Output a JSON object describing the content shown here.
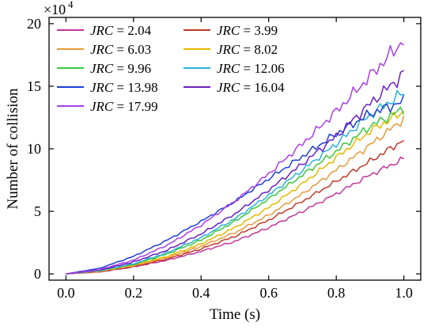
{
  "chart_data": {
    "type": "line",
    "xlabel": "Time (s)",
    "ylabel": "Number of collision",
    "y_multiplier_label": "×10",
    "y_multiplier_exp": "4",
    "xlim": [
      -0.05,
      1.05
    ],
    "ylim": [
      -0.5,
      20.5
    ],
    "x_ticks": [
      "0.0",
      "0.2",
      "0.4",
      "0.6",
      "0.8",
      "1.0"
    ],
    "x_tick_values": [
      0,
      0.2,
      0.4,
      0.6,
      0.8,
      1.0
    ],
    "y_ticks": [
      "0",
      "5",
      "10",
      "15",
      "20"
    ],
    "y_tick_values": [
      0,
      5,
      10,
      15,
      20
    ],
    "legend_prefix": "JRC",
    "legend_placement": "top-left",
    "x": [
      0.0,
      0.1,
      0.2,
      0.3,
      0.4,
      0.5,
      0.6,
      0.7,
      0.8,
      0.9,
      1.0
    ],
    "series": [
      {
        "name": "= 2.04",
        "color": "#c0369b",
        "values": [
          0,
          0.15,
          0.55,
          1.1,
          1.8,
          2.6,
          3.7,
          5.0,
          6.4,
          7.9,
          9.2
        ]
      },
      {
        "name": "= 3.99",
        "color": "#c0392b",
        "values": [
          0,
          0.18,
          0.6,
          1.2,
          2.0,
          3.0,
          4.3,
          5.8,
          7.4,
          9.0,
          10.7
        ]
      },
      {
        "name": "= 6.03",
        "color": "#e39a3b",
        "values": [
          0,
          0.2,
          0.65,
          1.3,
          2.2,
          3.3,
          4.7,
          6.4,
          8.3,
          10.3,
          12.4
        ]
      },
      {
        "name": "= 8.02",
        "color": "#e5b800",
        "values": [
          0,
          0.22,
          0.7,
          1.4,
          2.4,
          3.7,
          5.3,
          7.2,
          9.3,
          11.4,
          13.0
        ]
      },
      {
        "name": "= 9.96",
        "color": "#3cc73c",
        "values": [
          0,
          0.25,
          0.75,
          1.6,
          2.7,
          4.2,
          6.0,
          7.9,
          9.8,
          11.8,
          13.2
        ]
      },
      {
        "name": "= 12.06",
        "color": "#27b3d8",
        "values": [
          0,
          0.27,
          0.8,
          1.7,
          2.9,
          4.4,
          6.3,
          8.3,
          10.4,
          12.7,
          14.5
        ]
      },
      {
        "name": "= 13.98",
        "color": "#1f3fd4",
        "values": [
          0,
          0.45,
          1.4,
          2.7,
          4.2,
          5.8,
          7.6,
          9.4,
          11.2,
          12.8,
          13.8
        ]
      },
      {
        "name": "= 16.04",
        "color": "#6a1fc2",
        "values": [
          0,
          0.3,
          0.95,
          1.9,
          3.2,
          4.8,
          6.7,
          8.8,
          11.0,
          13.6,
          16.0
        ]
      },
      {
        "name": "= 17.99",
        "color": "#a83ee6",
        "values": [
          0,
          0.35,
          1.1,
          2.3,
          3.9,
          5.8,
          8.0,
          10.4,
          13.0,
          15.8,
          18.7
        ]
      }
    ]
  }
}
